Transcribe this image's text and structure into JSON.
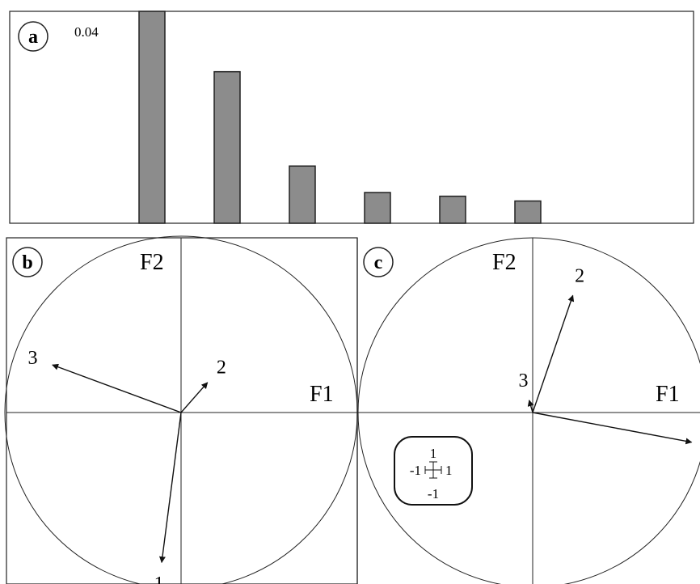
{
  "chart_data": [
    {
      "type": "bar",
      "panel_label": "a",
      "y_max_label": "0.04",
      "ylim": [
        0,
        0.04
      ],
      "values": [
        0.04,
        0.0286,
        0.0108,
        0.0058,
        0.0051,
        0.0042
      ],
      "colors": {
        "bar_fill": "#8c8c8c",
        "bar_stroke": "#222222"
      }
    },
    {
      "type": "scatter",
      "panel_label": "b",
      "xlabel": "F1",
      "ylabel": "F2",
      "xlim": [
        -1,
        1
      ],
      "ylim": [
        -1,
        1
      ],
      "vectors": [
        {
          "label": "1",
          "x": -0.11,
          "y": -0.85
        },
        {
          "label": "2",
          "x": 0.15,
          "y": 0.17
        },
        {
          "label": "3",
          "x": -0.73,
          "y": 0.27
        }
      ]
    },
    {
      "type": "scatter",
      "panel_label": "c",
      "xlabel": "F1",
      "ylabel": "F2",
      "xlim": [
        -1,
        1
      ],
      "ylim": [
        -1,
        1
      ],
      "vectors": [
        {
          "label": "1",
          "x": 0.91,
          "y": -0.17
        },
        {
          "label": "2",
          "x": 0.23,
          "y": 0.67
        },
        {
          "label": "3",
          "x": -0.02,
          "y": 0.07
        }
      ],
      "scale_box": {
        "top": "1",
        "bottom": "-1",
        "left": "-1",
        "right": "1"
      }
    }
  ]
}
